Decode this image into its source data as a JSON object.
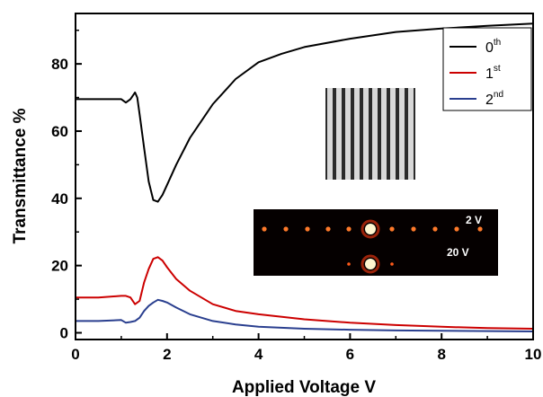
{
  "chart_data": {
    "type": "line",
    "xlabel": "Applied Voltage V",
    "ylabel": "Transmittance %",
    "xlim": [
      0,
      10
    ],
    "ylim": [
      -2,
      95
    ],
    "xticks": [
      "0",
      "2",
      "4",
      "6",
      "8",
      "10"
    ],
    "xtick_values": [
      0,
      2,
      4,
      6,
      8,
      10
    ],
    "yticks": [
      "0",
      "20",
      "40",
      "60",
      "80"
    ],
    "ytick_values": [
      0,
      20,
      40,
      60,
      80
    ],
    "grid": false,
    "legend_position": "top-right",
    "series": [
      {
        "name": "0th",
        "label_base": "0",
        "label_sup": "th",
        "color": "#000000",
        "x": [
          0,
          0.5,
          1.0,
          1.1,
          1.2,
          1.3,
          1.35,
          1.4,
          1.5,
          1.6,
          1.7,
          1.8,
          1.9,
          2.0,
          2.2,
          2.5,
          3.0,
          3.5,
          4.0,
          4.5,
          5.0,
          6.0,
          7.0,
          8.0,
          9.0,
          10.0
        ],
        "y": [
          69.5,
          69.5,
          69.5,
          68.5,
          69.5,
          71.5,
          70.0,
          65.0,
          55.0,
          45.0,
          39.5,
          39.0,
          41.0,
          44.0,
          50.0,
          58.0,
          68.0,
          75.5,
          80.5,
          83.0,
          85.0,
          87.5,
          89.5,
          90.5,
          91.3,
          92.0
        ]
      },
      {
        "name": "1st",
        "label_base": "1",
        "label_sup": "st",
        "color": "#cc0000",
        "x": [
          0,
          0.5,
          1.0,
          1.1,
          1.2,
          1.3,
          1.4,
          1.5,
          1.6,
          1.7,
          1.8,
          1.9,
          2.0,
          2.2,
          2.5,
          3.0,
          3.5,
          4.0,
          5.0,
          6.0,
          7.0,
          8.0,
          9.0,
          10.0
        ],
        "y": [
          10.5,
          10.5,
          11.0,
          11.0,
          10.5,
          8.5,
          9.5,
          15.0,
          19.0,
          22.0,
          22.5,
          21.5,
          19.5,
          16.0,
          12.5,
          8.5,
          6.5,
          5.5,
          4.0,
          3.0,
          2.3,
          1.8,
          1.4,
          1.2
        ]
      },
      {
        "name": "2nd",
        "label_base": "2",
        "label_sup": "nd",
        "color": "#2a3f8f",
        "x": [
          0,
          0.5,
          1.0,
          1.1,
          1.2,
          1.3,
          1.4,
          1.5,
          1.6,
          1.7,
          1.8,
          1.9,
          2.0,
          2.2,
          2.5,
          3.0,
          3.5,
          4.0,
          5.0,
          6.0,
          7.0,
          8.0,
          9.0,
          10.0
        ],
        "y": [
          3.5,
          3.5,
          3.8,
          3.0,
          3.2,
          3.5,
          4.5,
          6.5,
          8.0,
          9.0,
          9.8,
          9.5,
          9.0,
          7.5,
          5.5,
          3.5,
          2.5,
          1.8,
          1.2,
          0.9,
          0.7,
          0.6,
          0.5,
          0.4
        ]
      }
    ],
    "inset_annotations": [
      "2 V",
      "20 V"
    ]
  }
}
